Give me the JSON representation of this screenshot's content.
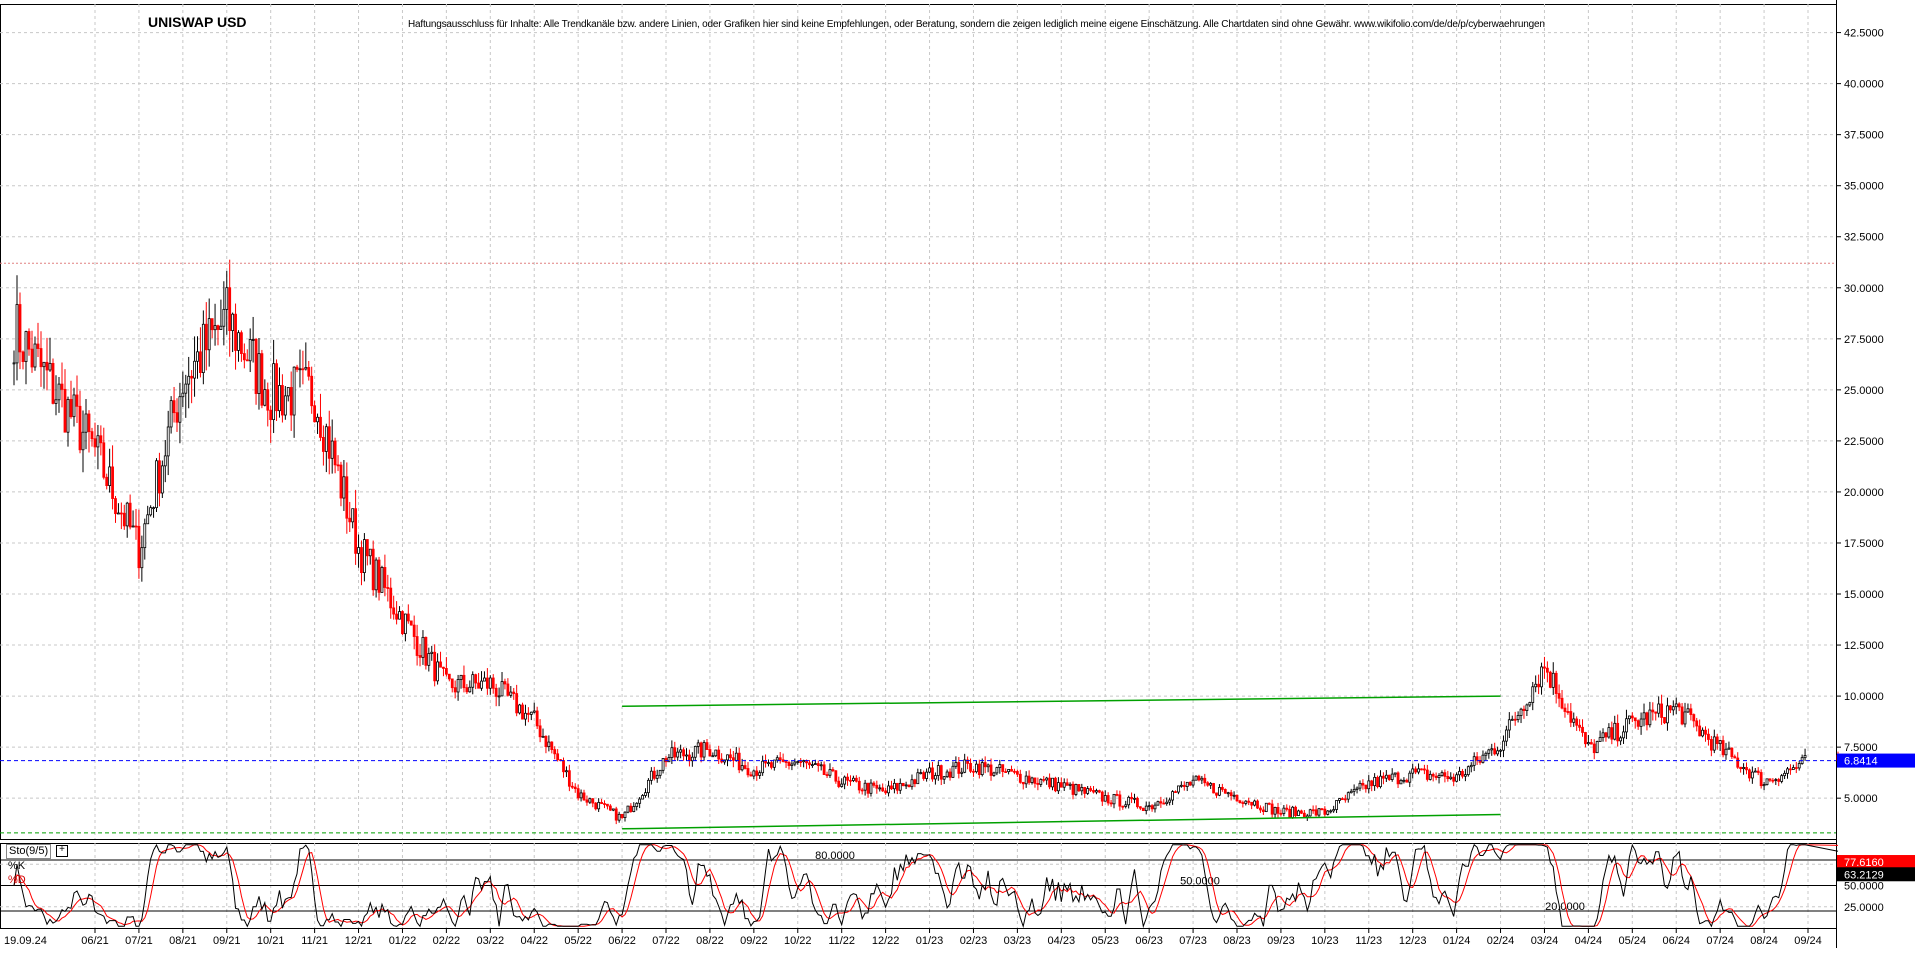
{
  "header": {
    "title": "UNISWAP USD",
    "disclaimer": "Haftungsausschluss für Inhalte: Alle Trendkanäle bzw. andere Linien, oder Grafiken hier sind keine Empfehlungen, oder Beratung, sondern die zeigen lediglich meine eigene Einschätzung. Alle Chartdaten sind ohne Gewähr.  www.wikifolio.com/de/de/p/cyberwaehrungen"
  },
  "indicator": {
    "label": "Sto(9/5)",
    "toggle": "+",
    "k_label": "%K",
    "d_label": "%D"
  },
  "colors": {
    "up": "#000000",
    "down": "#ff0000",
    "channel": "#00a000",
    "last_price_tag": "#0000ff",
    "k_tag": "#ff0000",
    "d_tag": "#000000",
    "grid": "#c8c8c8"
  },
  "chart_data": [
    {
      "type": "candlestick",
      "title": "UNISWAP USD",
      "x_tick_labels": [
        "19.09.24",
        "06/21",
        "07/21",
        "08/21",
        "09/21",
        "10/21",
        "11/21",
        "12/21",
        "01/22",
        "02/22",
        "03/22",
        "04/22",
        "05/22",
        "06/22",
        "07/22",
        "08/22",
        "09/22",
        "10/22",
        "11/22",
        "12/22",
        "01/23",
        "02/23",
        "03/23",
        "04/23",
        "05/23",
        "06/23",
        "07/23",
        "08/23",
        "09/23",
        "10/23",
        "11/23",
        "12/23",
        "01/24",
        "02/24",
        "03/24",
        "04/24",
        "05/24",
        "06/24",
        "07/24",
        "08/24",
        "09/24"
      ],
      "y_tick_labels": [
        "5.0000",
        "7.5000",
        "10.0000",
        "12.5000",
        "15.0000",
        "17.5000",
        "20.0000",
        "22.5000",
        "25.0000",
        "27.5000",
        "30.0000",
        "32.5000",
        "35.0000",
        "37.5000",
        "40.0000",
        "42.5000"
      ],
      "ylim": [
        3.0,
        43.9
      ],
      "grid": true,
      "price_path_monthly": [
        {
          "x": "06/21",
          "close": 22.0
        },
        {
          "x": "07/21",
          "close": 17.2
        },
        {
          "x": "08/21",
          "close": 25.5
        },
        {
          "x": "09/21",
          "close": 28.5
        },
        {
          "x": "10/21",
          "close": 24.8
        },
        {
          "x": "11/21",
          "close": 24.9
        },
        {
          "x": "12/21",
          "close": 17.3
        },
        {
          "x": "01/22",
          "close": 13.8
        },
        {
          "x": "02/22",
          "close": 10.5
        },
        {
          "x": "03/22",
          "close": 10.6
        },
        {
          "x": "04/22",
          "close": 8.8
        },
        {
          "x": "05/22",
          "close": 5.2
        },
        {
          "x": "06/22",
          "close": 4.0
        },
        {
          "x": "07/22",
          "close": 7.0
        },
        {
          "x": "08/22",
          "close": 7.4
        },
        {
          "x": "09/22",
          "close": 6.4
        },
        {
          "x": "10/22",
          "close": 6.8
        },
        {
          "x": "11/22",
          "close": 5.8
        },
        {
          "x": "12/22",
          "close": 5.3
        },
        {
          "x": "01/23",
          "close": 6.2
        },
        {
          "x": "02/23",
          "close": 6.6
        },
        {
          "x": "03/23",
          "close": 6.1
        },
        {
          "x": "04/23",
          "close": 5.6
        },
        {
          "x": "05/23",
          "close": 5.0
        },
        {
          "x": "06/23",
          "close": 4.6
        },
        {
          "x": "07/23",
          "close": 5.8
        },
        {
          "x": "08/23",
          "close": 5.1
        },
        {
          "x": "09/23",
          "close": 4.3
        },
        {
          "x": "10/23",
          "close": 4.3
        },
        {
          "x": "11/23",
          "close": 5.7
        },
        {
          "x": "12/23",
          "close": 6.2
        },
        {
          "x": "01/24",
          "close": 6.0
        },
        {
          "x": "02/24",
          "close": 7.7
        },
        {
          "x": "03/24",
          "close": 11.5
        },
        {
          "x": "04/24",
          "close": 7.4
        },
        {
          "x": "05/24",
          "close": 8.7
        },
        {
          "x": "06/24",
          "close": 9.4
        },
        {
          "x": "07/24",
          "close": 7.4
        },
        {
          "x": "08/24",
          "close": 5.8
        },
        {
          "x": "09/24",
          "close": 6.8
        }
      ],
      "reference_lines": [
        {
          "y": 31.2,
          "style": "dotted",
          "color": "#e08080"
        },
        {
          "y": 6.8414,
          "style": "dashed",
          "color": "#0000ff"
        },
        {
          "y": 3.3,
          "style": "dashed",
          "color": "#00a000"
        }
      ],
      "trend_channel": {
        "upper": {
          "from": {
            "x": "06/22",
            "y": 9.5
          },
          "to": {
            "x": "02/24",
            "y": 10.0
          }
        },
        "lower": {
          "from": {
            "x": "06/22",
            "y": 3.5
          },
          "to": {
            "x": "02/24",
            "y": 4.2
          }
        }
      },
      "last_price_label": "6.8414"
    },
    {
      "type": "line",
      "title": "Sto(9/5)",
      "series": [
        {
          "name": "%K"
        },
        {
          "name": "%D"
        }
      ],
      "levels": [
        {
          "value": 80,
          "label": "80.0000"
        },
        {
          "value": 50,
          "label": "50.0000"
        },
        {
          "value": 20,
          "label": "20.0000"
        }
      ],
      "y_tick_labels": [
        "25.0000",
        "50.0000"
      ],
      "ylim": [
        0,
        100
      ],
      "last_k_label": "77.6160",
      "last_d_label": "63.2129"
    }
  ]
}
